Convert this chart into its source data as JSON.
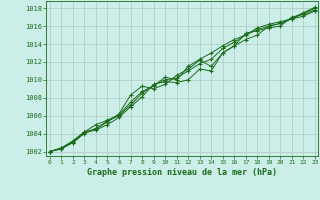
{
  "title": "Graphe pression niveau de la mer (hPa)",
  "xlim": [
    -0.3,
    23.3
  ],
  "ylim": [
    1001.5,
    1018.8
  ],
  "yticks": [
    1002,
    1004,
    1006,
    1008,
    1010,
    1012,
    1014,
    1016,
    1018
  ],
  "xticks": [
    0,
    1,
    2,
    3,
    4,
    5,
    6,
    7,
    8,
    9,
    10,
    11,
    12,
    13,
    14,
    15,
    16,
    17,
    18,
    19,
    20,
    21,
    22,
    23
  ],
  "bg_color": "#cceee8",
  "grid_color": "#b0c8c0",
  "line_color": "#1a6b1a",
  "series": [
    [
      1002.0,
      1002.3,
      1003.1,
      1004.1,
      1004.4,
      1005.0,
      1005.8,
      1007.0,
      1008.1,
      1009.5,
      1009.8,
      1009.7,
      1010.0,
      1011.2,
      1011.0,
      1013.0,
      1013.8,
      1014.5,
      1015.0,
      1016.0,
      1016.3,
      1016.8,
      1017.4,
      1018.0
    ],
    [
      1002.0,
      1002.4,
      1003.2,
      1004.2,
      1004.5,
      1005.3,
      1006.2,
      1008.3,
      1009.3,
      1009.0,
      1009.5,
      1010.5,
      1011.2,
      1012.2,
      1011.5,
      1013.0,
      1013.8,
      1015.2,
      1015.5,
      1015.8,
      1016.0,
      1017.0,
      1017.3,
      1017.8
    ],
    [
      1002.0,
      1002.4,
      1003.0,
      1004.2,
      1005.0,
      1005.5,
      1006.1,
      1007.5,
      1008.7,
      1009.3,
      1010.3,
      1010.0,
      1011.5,
      1012.3,
      1013.0,
      1013.8,
      1014.5,
      1015.0,
      1015.8,
      1016.2,
      1016.5,
      1016.8,
      1017.1,
      1017.7
    ],
    [
      1002.0,
      1002.3,
      1003.0,
      1004.0,
      1004.6,
      1005.4,
      1006.0,
      1007.2,
      1008.5,
      1009.4,
      1010.0,
      1010.2,
      1011.0,
      1011.8,
      1012.3,
      1013.5,
      1014.2,
      1015.0,
      1015.6,
      1016.0,
      1016.3,
      1016.9,
      1017.5,
      1018.1
    ]
  ]
}
